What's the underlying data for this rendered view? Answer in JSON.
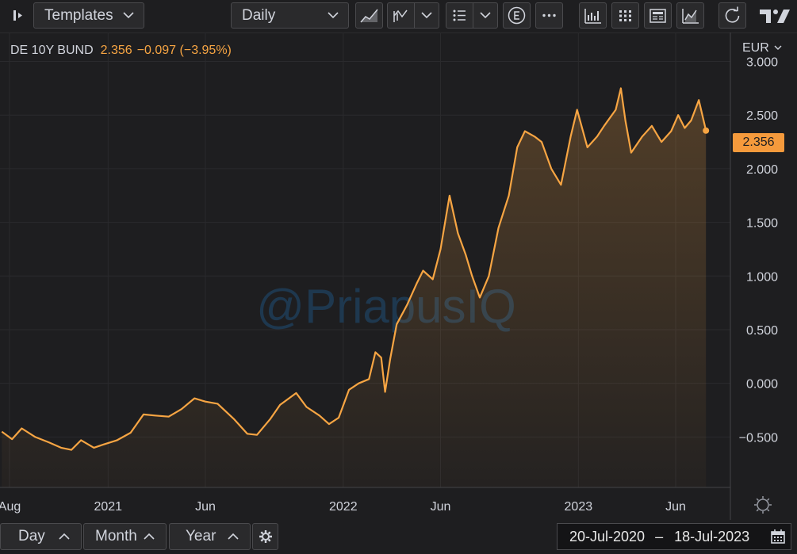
{
  "toolbar": {
    "templates_label": "Templates",
    "interval_label": "Daily",
    "icons": [
      "sidebar-toggle-icon",
      "chart-style-icon",
      "indicators-icon",
      "list-icon",
      "currency-icon",
      "more-icon",
      "compare-icon",
      "grid-icon",
      "news-icon",
      "analysis-icon",
      "reset-icon",
      "tradingview-logo-icon"
    ]
  },
  "legend": {
    "symbol": "DE 10Y BUND",
    "last": "2.356",
    "change": "−0.097 (−3.95%)"
  },
  "watermark": "@PriapusIQ",
  "currency_label": "EUR",
  "last_price_label": "2.356",
  "date_range": {
    "from": "20-Jul-2020",
    "separator": "–",
    "to": "18-Jul-2023"
  },
  "range_buttons": {
    "day": "Day",
    "month": "Month",
    "year": "Year"
  },
  "colors": {
    "line": "#f7a543",
    "background": "#1e1e20",
    "price_label": "#f59a3c"
  },
  "chart_data": {
    "type": "area",
    "title": "DE 10Y BUND",
    "currency": "EUR",
    "x_ticks": [
      "Aug",
      "2021",
      "Jun",
      "2022",
      "Jun",
      "2023",
      "Jun"
    ],
    "y_ticks": [
      "3.000",
      "2.500",
      "2.000",
      "1.500",
      "1.000",
      "0.500",
      "0.000",
      "−0.500"
    ],
    "ylim": [
      -0.97,
      3.27
    ],
    "xlim": [
      "2020-07-20",
      "2023-07-18"
    ],
    "grid": true,
    "series": [
      {
        "name": "DE 10Y BUND",
        "points": [
          [
            "2020-07-20",
            -0.45
          ],
          [
            "2020-08-05",
            -0.52
          ],
          [
            "2020-08-20",
            -0.42
          ],
          [
            "2020-09-10",
            -0.5
          ],
          [
            "2020-10-01",
            -0.55
          ],
          [
            "2020-10-20",
            -0.6
          ],
          [
            "2020-11-05",
            -0.62
          ],
          [
            "2020-11-20",
            -0.53
          ],
          [
            "2020-12-10",
            -0.6
          ],
          [
            "2020-12-25",
            -0.57
          ],
          [
            "2021-01-15",
            -0.53
          ],
          [
            "2021-02-05",
            -0.46
          ],
          [
            "2021-02-25",
            -0.29
          ],
          [
            "2021-03-15",
            -0.3
          ],
          [
            "2021-04-05",
            -0.31
          ],
          [
            "2021-04-25",
            -0.24
          ],
          [
            "2021-05-15",
            -0.14
          ],
          [
            "2021-06-01",
            -0.17
          ],
          [
            "2021-06-20",
            -0.19
          ],
          [
            "2021-07-15",
            -0.33
          ],
          [
            "2021-08-05",
            -0.47
          ],
          [
            "2021-08-20",
            -0.48
          ],
          [
            "2021-09-10",
            -0.33
          ],
          [
            "2021-09-25",
            -0.2
          ],
          [
            "2021-10-20",
            -0.09
          ],
          [
            "2021-11-05",
            -0.22
          ],
          [
            "2021-11-25",
            -0.3
          ],
          [
            "2021-12-10",
            -0.38
          ],
          [
            "2021-12-25",
            -0.32
          ],
          [
            "2022-01-10",
            -0.06
          ],
          [
            "2022-01-25",
            0.0
          ],
          [
            "2022-02-10",
            0.04
          ],
          [
            "2022-02-20",
            0.29
          ],
          [
            "2022-03-01",
            0.24
          ],
          [
            "2022-03-07",
            -0.08
          ],
          [
            "2022-03-15",
            0.23
          ],
          [
            "2022-03-25",
            0.55
          ],
          [
            "2022-04-10",
            0.73
          ],
          [
            "2022-04-25",
            0.93
          ],
          [
            "2022-05-05",
            1.05
          ],
          [
            "2022-05-20",
            0.97
          ],
          [
            "2022-06-01",
            1.25
          ],
          [
            "2022-06-15",
            1.75
          ],
          [
            "2022-06-28",
            1.4
          ],
          [
            "2022-07-10",
            1.2
          ],
          [
            "2022-07-20",
            1.0
          ],
          [
            "2022-08-01",
            0.8
          ],
          [
            "2022-08-15",
            1.0
          ],
          [
            "2022-08-30",
            1.45
          ],
          [
            "2022-09-15",
            1.75
          ],
          [
            "2022-09-28",
            2.2
          ],
          [
            "2022-10-10",
            2.35
          ],
          [
            "2022-10-25",
            2.3
          ],
          [
            "2022-11-05",
            2.25
          ],
          [
            "2022-11-20",
            2.0
          ],
          [
            "2022-12-05",
            1.85
          ],
          [
            "2022-12-20",
            2.3
          ],
          [
            "2022-12-30",
            2.55
          ],
          [
            "2023-01-15",
            2.2
          ],
          [
            "2023-01-30",
            2.3
          ],
          [
            "2023-02-10",
            2.4
          ],
          [
            "2023-02-28",
            2.55
          ],
          [
            "2023-03-08",
            2.75
          ],
          [
            "2023-03-15",
            2.45
          ],
          [
            "2023-03-24",
            2.15
          ],
          [
            "2023-04-10",
            2.3
          ],
          [
            "2023-04-25",
            2.4
          ],
          [
            "2023-05-10",
            2.25
          ],
          [
            "2023-05-25",
            2.35
          ],
          [
            "2023-06-05",
            2.5
          ],
          [
            "2023-06-15",
            2.38
          ],
          [
            "2023-06-25",
            2.45
          ],
          [
            "2023-07-07",
            2.64
          ],
          [
            "2023-07-18",
            2.356
          ]
        ]
      }
    ]
  }
}
